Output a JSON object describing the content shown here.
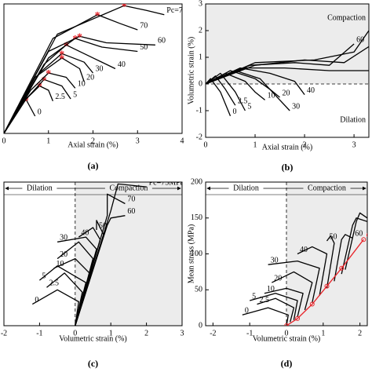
{
  "chart_data": [
    {
      "type": "line",
      "caption": "(a)",
      "xlabel": "Axial strain (%)",
      "xlim": [
        0,
        4
      ],
      "xticks": [
        0,
        1,
        2,
        3,
        4
      ],
      "ylim": [
        0,
        300
      ],
      "peak_marker": "#e8242a",
      "series": [
        {
          "name": "0",
          "color": "#000000",
          "x": [
            0,
            0.3,
            0.5,
            0.7
          ],
          "values": [
            0,
            60,
            78,
            40
          ]
        },
        {
          "name": "2.5",
          "color": "#000000",
          "x": [
            0,
            0.4,
            0.8,
            1.0,
            1.1
          ],
          "values": [
            0,
            70,
            110,
            100,
            75
          ]
        },
        {
          "name": "5",
          "color": "#000000",
          "x": [
            0,
            0.5,
            0.9,
            1.3,
            1.5
          ],
          "values": [
            0,
            80,
            125,
            110,
            80
          ]
        },
        {
          "name": "10",
          "color": "#000000",
          "x": [
            0,
            0.6,
            1.0,
            1.4,
            1.6
          ],
          "values": [
            0,
            100,
            140,
            130,
            105
          ]
        },
        {
          "name": "20",
          "color": "#000000",
          "x": [
            0,
            0.7,
            1.3,
            1.7,
            1.8
          ],
          "values": [
            0,
            130,
            175,
            150,
            120
          ]
        },
        {
          "name": "30",
          "color": "#000000",
          "x": [
            0,
            0.8,
            1.3,
            1.8,
            2.0
          ],
          "values": [
            0,
            140,
            185,
            165,
            140
          ]
        },
        {
          "name": "40",
          "color": "#000000",
          "x": [
            0,
            0.9,
            1.4,
            2.0,
            2.5
          ],
          "values": [
            0,
            160,
            205,
            175,
            150
          ]
        },
        {
          "name": "50",
          "color": "#000000",
          "x": [
            0,
            1.0,
            1.6,
            2.2,
            3.0
          ],
          "values": [
            0,
            175,
            220,
            200,
            190
          ]
        },
        {
          "name": "60",
          "color": "#000000",
          "x": [
            0,
            1.0,
            1.7,
            2.3,
            3.4
          ],
          "values": [
            0,
            190,
            225,
            210,
            205
          ]
        },
        {
          "name": "70",
          "color": "#000000",
          "x": [
            0,
            1.1,
            2.1,
            2.6,
            3.0
          ],
          "values": [
            0,
            220,
            275,
            255,
            240
          ]
        },
        {
          "name": "Pc=75MPa",
          "color": "#000000",
          "x": [
            0,
            1.2,
            2.7,
            3.2,
            3.6
          ],
          "values": [
            0,
            230,
            296,
            285,
            275
          ]
        }
      ]
    },
    {
      "type": "line",
      "caption": "(b)",
      "xlabel": "Axial strain (%)",
      "ylabel": "Volumetric strain (%)",
      "xlim": [
        0,
        3.3
      ],
      "xticks": [
        0,
        1,
        2,
        3
      ],
      "ylim": [
        -2,
        3
      ],
      "yticks": [
        -2,
        -1,
        0,
        1,
        2,
        3
      ],
      "shade": "y",
      "upper_label": "Compaction",
      "lower_label": "Dilation",
      "series": [
        {
          "name": "0",
          "color": "#000000",
          "x": [
            0,
            0.1,
            0.3,
            0.5
          ],
          "values": [
            0,
            0.2,
            -0.3,
            -1.2
          ]
        },
        {
          "name": "2.5",
          "color": "#000000",
          "x": [
            0,
            0.2,
            0.4,
            0.6
          ],
          "values": [
            0,
            0.3,
            -0.2,
            -0.8
          ]
        },
        {
          "name": "5",
          "color": "#000000",
          "x": [
            0,
            0.3,
            0.6,
            0.8
          ],
          "values": [
            0,
            0.4,
            -0.3,
            -1.0
          ]
        },
        {
          "name": "10",
          "color": "#000000",
          "x": [
            0,
            0.4,
            0.8,
            1.0,
            1.2
          ],
          "values": [
            0,
            0.4,
            0.1,
            -0.3,
            -0.6
          ]
        },
        {
          "name": "20",
          "color": "#000000",
          "x": [
            0,
            0.5,
            1.0,
            1.3,
            1.5
          ],
          "values": [
            0,
            0.5,
            0.2,
            -0.2,
            -0.5
          ]
        },
        {
          "name": "30",
          "color": "#000000",
          "x": [
            0,
            0.6,
            1.1,
            1.5,
            1.7
          ],
          "values": [
            0,
            0.5,
            0.2,
            -0.6,
            -1.0
          ]
        },
        {
          "name": "40",
          "color": "#000000",
          "x": [
            0,
            0.7,
            1.3,
            1.8,
            2.0
          ],
          "values": [
            0,
            0.6,
            0.4,
            0.1,
            -0.4
          ]
        },
        {
          "name": "50",
          "color": "#000000",
          "x": [
            0,
            0.8,
            1.6,
            2.5,
            3.3
          ],
          "values": [
            0,
            0.6,
            0.6,
            0.5,
            0.5
          ]
        },
        {
          "name": "60",
          "color": "#000000",
          "x": [
            0,
            0.9,
            1.8,
            2.5,
            3.0
          ],
          "values": [
            0,
            0.7,
            0.8,
            0.7,
            1.5
          ]
        },
        {
          "name": "70",
          "color": "#000000",
          "x": [
            0,
            1.0,
            2.0,
            2.8,
            3.3
          ],
          "values": [
            0,
            0.7,
            0.9,
            0.8,
            1.4
          ]
        },
        {
          "name": "Pc=75MPa",
          "color": "#000000",
          "x": [
            0,
            1.0,
            2.2,
            3.0,
            3.3
          ],
          "values": [
            0,
            0.8,
            0.9,
            1.2,
            2.0
          ]
        }
      ]
    },
    {
      "type": "line",
      "caption": "(c)",
      "xlabel": "Volumetric strain (%)",
      "xlim": [
        -2,
        3
      ],
      "xticks": [
        -2,
        -1,
        0,
        1,
        2,
        3
      ],
      "ylim": [
        0,
        300
      ],
      "shade": "x",
      "left_label": "Dilation",
      "right_label": "Compaction",
      "series": [
        {
          "name": "0",
          "color": "#000000",
          "x": [
            0,
            0.1,
            -0.5,
            -1.2
          ],
          "values": [
            0,
            50,
            75,
            45
          ]
        },
        {
          "name": "2.5",
          "color": "#000000",
          "x": [
            0,
            0.2,
            -0.3,
            -0.8
          ],
          "values": [
            0,
            70,
            110,
            80
          ]
        },
        {
          "name": "5",
          "color": "#000000",
          "x": [
            0,
            0.3,
            -0.5,
            -1.0
          ],
          "values": [
            0,
            90,
            125,
            95
          ]
        },
        {
          "name": "10",
          "color": "#000000",
          "x": [
            0,
            0.4,
            0.0,
            -0.6
          ],
          "values": [
            0,
            110,
            140,
            120
          ]
        },
        {
          "name": "20",
          "color": "#000000",
          "x": [
            0,
            0.5,
            0.1,
            -0.5
          ],
          "values": [
            0,
            140,
            175,
            140
          ]
        },
        {
          "name": "30",
          "color": "#000000",
          "x": [
            0,
            0.6,
            0.3,
            -0.5
          ],
          "values": [
            0,
            160,
            185,
            175
          ]
        },
        {
          "name": "40",
          "color": "#000000",
          "x": [
            0,
            0.7,
            0.5,
            0.1
          ],
          "values": [
            0,
            180,
            205,
            185
          ]
        },
        {
          "name": "50",
          "color": "#000000",
          "x": [
            0,
            0.8,
            0.6,
            0.6
          ],
          "values": [
            0,
            190,
            220,
            200
          ]
        },
        {
          "name": "60",
          "color": "#000000",
          "x": [
            0,
            0.9,
            1.0,
            1.4
          ],
          "values": [
            0,
            210,
            225,
            230
          ]
        },
        {
          "name": "70",
          "color": "#000000",
          "x": [
            0,
            0.9,
            0.9,
            1.4
          ],
          "values": [
            0,
            230,
            275,
            255
          ]
        },
        {
          "name": "Pc=75MPa",
          "color": "#000000",
          "x": [
            0,
            1.0,
            1.2,
            2.0
          ],
          "values": [
            0,
            240,
            296,
            290
          ]
        }
      ]
    },
    {
      "type": "line",
      "caption": "(d)",
      "xlabel": "Volumetric strain (%)",
      "ylabel": "Mean stress (MPa)",
      "xlim": [
        -2.2,
        2.2
      ],
      "xticks": [
        -2,
        -1,
        0,
        1,
        2
      ],
      "ylim": [
        0,
        200
      ],
      "yticks": [
        0,
        50,
        100,
        150,
        200
      ],
      "shade": "x",
      "left_label": "Dilation",
      "right_label": "Compaction",
      "series": [
        {
          "name": "0",
          "color": "#000000",
          "x": [
            0,
            0.05,
            -0.5,
            -1.2
          ],
          "values": [
            0,
            15,
            25,
            15
          ]
        },
        {
          "name": "2.5",
          "color": "#000000",
          "x": [
            0.1,
            0.2,
            -0.3,
            -0.8
          ],
          "values": [
            5,
            25,
            38,
            30
          ]
        },
        {
          "name": "5",
          "color": "#000000",
          "x": [
            0.2,
            0.3,
            -0.3,
            -1.0
          ],
          "values": [
            8,
            35,
            45,
            35
          ]
        },
        {
          "name": "10",
          "color": "#000000",
          "x": [
            0.3,
            0.45,
            0.0,
            -0.6
          ],
          "values": [
            12,
            45,
            52,
            45
          ]
        },
        {
          "name": "20",
          "color": "#000000",
          "x": [
            0.5,
            0.7,
            0.2,
            -0.4
          ],
          "values": [
            22,
            60,
            75,
            60
          ]
        },
        {
          "name": "30",
          "color": "#000000",
          "x": [
            0.7,
            0.9,
            0.3,
            -0.5
          ],
          "values": [
            32,
            80,
            90,
            85
          ]
        },
        {
          "name": "40",
          "color": "#000000",
          "x": [
            0.9,
            1.1,
            0.7,
            0.3
          ],
          "values": [
            42,
            100,
            110,
            100
          ]
        },
        {
          "name": "50",
          "color": "#000000",
          "x": [
            1.1,
            1.3,
            1.2,
            1.1
          ],
          "values": [
            52,
            115,
            125,
            118
          ]
        },
        {
          "name": "60",
          "color": "#000000",
          "x": [
            1.3,
            1.5,
            1.6,
            1.8
          ],
          "values": [
            62,
            120,
            127,
            122
          ]
        },
        {
          "name": "70",
          "color": "#000000",
          "x": [
            1.5,
            1.8,
            1.9,
            2.2
          ],
          "values": [
            72,
            140,
            150,
            145
          ]
        },
        {
          "name": "Pc=75MPa",
          "color": "#000000",
          "x": [
            1.6,
            1.9,
            2.0,
            2.2
          ],
          "values": [
            78,
            145,
            157,
            150
          ]
        },
        {
          "name": "C'",
          "color": "#e8242a",
          "markers": true,
          "x": [
            0,
            0.3,
            0.7,
            1.1,
            1.5,
            2.1
          ],
          "values": [
            0,
            10,
            30,
            55,
            80,
            120
          ]
        }
      ]
    }
  ]
}
